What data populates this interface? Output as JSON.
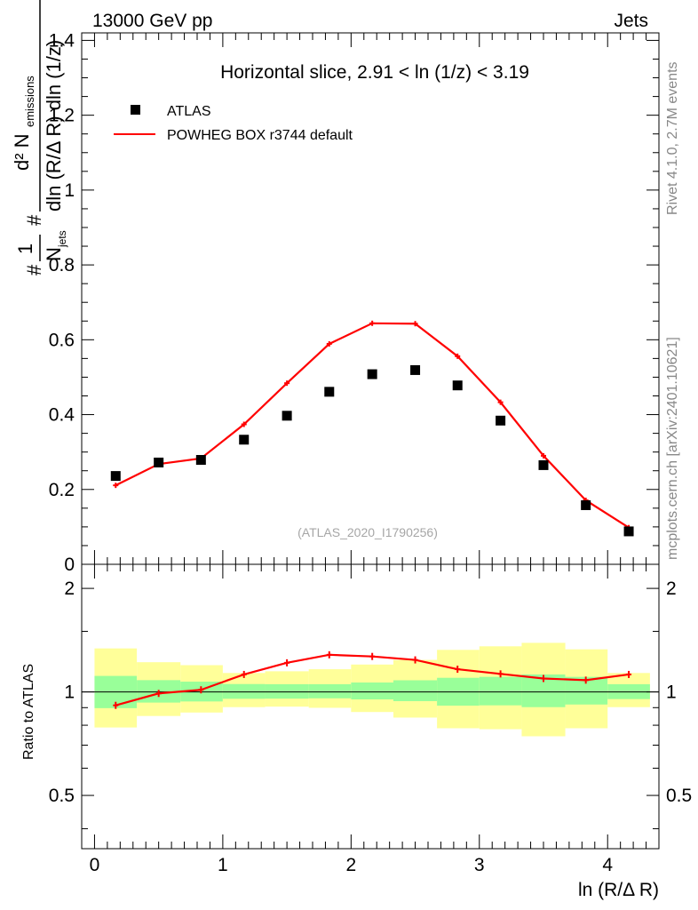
{
  "header": {
    "energy": "13000 GeV pp",
    "process": "Jets"
  },
  "side": {
    "rivet": "Rivet 4.1.0,  2.7M events",
    "mcplots": "mcplots.cern.ch [arXiv:2401.10621]"
  },
  "chart_data": [
    {
      "type": "scatter",
      "title": "Horizontal slice, 2.91 < ln (1/z) < 3.19",
      "watermark": "(ATLAS_2020_I1790256)",
      "ylabel": "#1/N_jets #d² N_emissions/dln (R/Δ R) dln (1/z)",
      "ylabel_parts": {
        "frac1_num": "1",
        "frac1_den": "N",
        "frac1_den_sub": "jets",
        "frac2_num": "d² N",
        "frac2_num_sub": "emissions",
        "frac2_den": "dln (R/Δ R) dln (1/z)",
        "hash": "#"
      },
      "xlim": [
        -0.1,
        4.4
      ],
      "ylim": [
        0,
        1.42
      ],
      "yticks": [
        0,
        0.2,
        0.4,
        0.6,
        0.8,
        1,
        1.2,
        1.4
      ],
      "ytick_labels": [
        "0",
        "0.2",
        "0.4",
        "0.6",
        "0.8",
        "1",
        "1.2",
        "1.4"
      ],
      "legend": [
        {
          "label": "ATLAS",
          "kind": "marker",
          "color": "#000000"
        },
        {
          "label": "POWHEG BOX r3744 default",
          "kind": "line",
          "color": "#ff0000"
        }
      ],
      "series": [
        {
          "name": "ATLAS",
          "x": [
            0.165,
            0.5,
            0.83,
            1.165,
            1.5,
            1.83,
            2.165,
            2.5,
            2.83,
            3.165,
            3.5,
            3.83,
            4.165
          ],
          "values": [
            0.236,
            0.272,
            0.279,
            0.333,
            0.397,
            0.461,
            0.508,
            0.519,
            0.478,
            0.384,
            0.265,
            0.158,
            0.088
          ]
        },
        {
          "name": "POWHEG BOX r3744 default",
          "x": [
            0.165,
            0.5,
            0.83,
            1.165,
            1.5,
            1.83,
            2.165,
            2.5,
            2.83,
            3.165,
            3.5,
            3.83,
            4.165
          ],
          "values": [
            0.211,
            0.268,
            0.283,
            0.374,
            0.484,
            0.589,
            0.644,
            0.643,
            0.556,
            0.433,
            0.29,
            0.171,
            0.098
          ]
        }
      ]
    },
    {
      "type": "line",
      "ylabel": "Ratio to ATLAS",
      "xlabel": "ln (R/Δ R)",
      "xlim": [
        -0.1,
        4.4
      ],
      "ylim": [
        0.35,
        2.35
      ],
      "xticks": [
        0,
        1,
        2,
        3,
        4
      ],
      "xtick_labels": [
        "0",
        "1",
        "2",
        "3",
        "4"
      ],
      "yticks": [
        0.5,
        1,
        2
      ],
      "ytick_labels": [
        "0.5",
        "1",
        "2"
      ],
      "reference": 1,
      "bands": {
        "edges": [
          0,
          0.33,
          0.67,
          1.0,
          1.33,
          1.67,
          2.0,
          2.33,
          2.67,
          3.0,
          3.33,
          3.67,
          4.0,
          4.33
        ],
        "stat": {
          "lo": [
            0.897,
            0.931,
            0.938,
            0.955,
            0.956,
            0.958,
            0.951,
            0.94,
            0.912,
            0.914,
            0.903,
            0.919,
            0.953
          ],
          "hi": [
            1.113,
            1.082,
            1.071,
            1.054,
            1.053,
            1.053,
            1.065,
            1.081,
            1.099,
            1.106,
            1.124,
            1.106,
            1.053
          ]
        },
        "total": {
          "lo": [
            0.788,
            0.851,
            0.871,
            0.903,
            0.906,
            0.899,
            0.874,
            0.842,
            0.784,
            0.779,
            0.743,
            0.784,
            0.903
          ],
          "hi": [
            1.338,
            1.22,
            1.196,
            1.135,
            1.148,
            1.164,
            1.201,
            1.239,
            1.325,
            1.357,
            1.389,
            1.33,
            1.135
          ]
        }
      },
      "series": [
        {
          "name": "POWHEG BOX r3744 default",
          "x": [
            0.165,
            0.5,
            0.83,
            1.165,
            1.5,
            1.83,
            2.165,
            2.5,
            2.83,
            3.165,
            3.5,
            3.83,
            4.165
          ],
          "values": [
            0.914,
            0.99,
            1.014,
            1.124,
            1.215,
            1.282,
            1.268,
            1.239,
            1.164,
            1.128,
            1.094,
            1.082,
            1.124
          ]
        }
      ]
    }
  ],
  "colors": {
    "data": "#000000",
    "mc": "#ff0000",
    "stat_band": "#99ff99",
    "total_band": "#ffff99",
    "side_text": "#888888",
    "watermark": "#a6a6a6"
  }
}
